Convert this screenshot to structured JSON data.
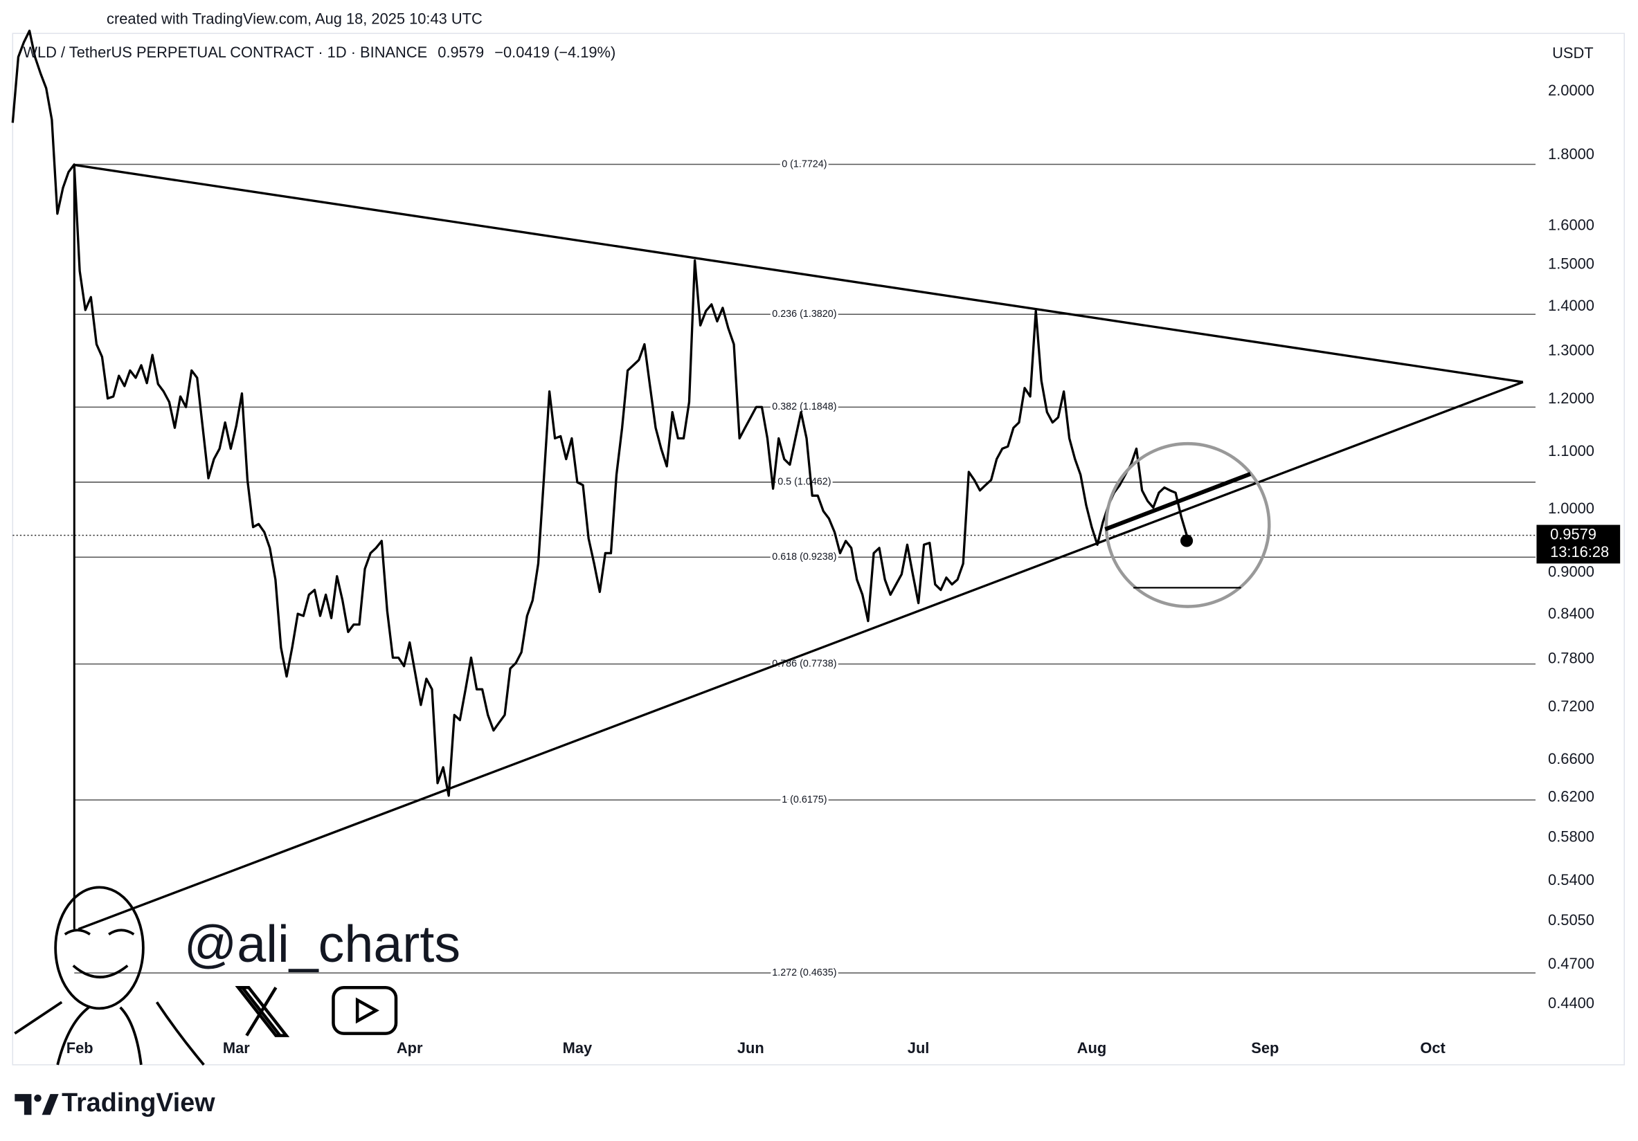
{
  "header": {
    "created": "created with TradingView.com, Aug 18, 2025 10:43 UTC"
  },
  "chart_data": {
    "type": "line",
    "title": "WLD / TetherUS PERPETUAL CONTRACT · 1D · BINANCE",
    "last_price": 0.9579,
    "change": "−0.0419 (−4.19%)",
    "currency": "USDT",
    "countdown": "13:16:28",
    "color": "#000000",
    "log_scale": true,
    "values": [
      1.899,
      2.118,
      2.17,
      2.212,
      2.118,
      2.06,
      2.011,
      1.909,
      1.633,
      1.705,
      1.75,
      1.772,
      1.485,
      1.392,
      1.422,
      1.315,
      1.288,
      1.202,
      1.206,
      1.248,
      1.227,
      1.259,
      1.244,
      1.27,
      1.233,
      1.292,
      1.231,
      1.216,
      1.195,
      1.145,
      1.206,
      1.185,
      1.259,
      1.244,
      1.145,
      1.053,
      1.087,
      1.106,
      1.155,
      1.106,
      1.149,
      1.212,
      1.05,
      0.971,
      0.976,
      0.963,
      0.938,
      0.89,
      0.795,
      0.758,
      0.795,
      0.841,
      0.838,
      0.868,
      0.875,
      0.838,
      0.868,
      0.835,
      0.895,
      0.86,
      0.816,
      0.826,
      0.826,
      0.906,
      0.93,
      0.938,
      0.949,
      0.845,
      0.782,
      0.782,
      0.771,
      0.802,
      0.762,
      0.723,
      0.755,
      0.742,
      0.635,
      0.652,
      0.622,
      0.711,
      0.705,
      0.742,
      0.782,
      0.742,
      0.742,
      0.711,
      0.693,
      0.702,
      0.711,
      0.768,
      0.775,
      0.789,
      0.838,
      0.86,
      0.914,
      1.05,
      1.216,
      1.125,
      1.129,
      1.087,
      1.125,
      1.046,
      1.041,
      0.953,
      0.914,
      0.872,
      0.93,
      0.93,
      1.059,
      1.145,
      1.259,
      1.27,
      1.281,
      1.315,
      1.227,
      1.145,
      1.106,
      1.074,
      1.175,
      1.125,
      1.125,
      1.195,
      1.511,
      1.357,
      1.39,
      1.405,
      1.366,
      1.397,
      1.35,
      1.315,
      1.125,
      1.145,
      1.165,
      1.185,
      1.185,
      1.125,
      1.035,
      1.125,
      1.087,
      1.077,
      1.125,
      1.175,
      1.125,
      1.023,
      1.023,
      0.997,
      0.985,
      0.963,
      0.93,
      0.949,
      0.938,
      0.89,
      0.868,
      0.831,
      0.93,
      0.938,
      0.89,
      0.868,
      0.883,
      0.898,
      0.943,
      0.898,
      0.856,
      0.943,
      0.946,
      0.883,
      0.875,
      0.893,
      0.883,
      0.89,
      0.914,
      1.064,
      1.05,
      1.032,
      1.041,
      1.05,
      1.087,
      1.106,
      1.11,
      1.145,
      1.155,
      1.223,
      1.206,
      1.39,
      1.238,
      1.175,
      1.155,
      1.165,
      1.216,
      1.125,
      1.087,
      1.059,
      1.007,
      0.971,
      0.943,
      0.979,
      1.007,
      1.028,
      1.041,
      1.059,
      1.077,
      1.106,
      1.032,
      1.014,
      1.003,
      1.028,
      1.037,
      1.032,
      1.028,
      0.988,
      0.9579
    ],
    "xlim": [
      0,
      272
    ],
    "xticks": [
      {
        "value": 12,
        "label": "Feb"
      },
      {
        "value": 40,
        "label": "Mar"
      },
      {
        "value": 71,
        "label": "Apr"
      },
      {
        "value": 101,
        "label": "May"
      },
      {
        "value": 132,
        "label": "Jun"
      },
      {
        "value": 162,
        "label": "Jul"
      },
      {
        "value": 193,
        "label": "Aug"
      },
      {
        "value": 224,
        "label": "Sep"
      },
      {
        "value": 254,
        "label": "Oct"
      }
    ],
    "ylim": [
      0.398,
      2.21
    ],
    "yticks": [
      {
        "value": 2.0,
        "label": "2.0000"
      },
      {
        "value": 1.8,
        "label": "1.8000"
      },
      {
        "value": 1.6,
        "label": "1.6000"
      },
      {
        "value": 1.5,
        "label": "1.5000"
      },
      {
        "value": 1.4,
        "label": "1.4000"
      },
      {
        "value": 1.3,
        "label": "1.3000"
      },
      {
        "value": 1.2,
        "label": "1.2000"
      },
      {
        "value": 1.1,
        "label": "1.1000"
      },
      {
        "value": 1.0,
        "label": "1.0000"
      },
      {
        "value": 0.9,
        "label": "0.9000"
      },
      {
        "value": 0.84,
        "label": "0.8400"
      },
      {
        "value": 0.78,
        "label": "0.7800"
      },
      {
        "value": 0.72,
        "label": "0.7200"
      },
      {
        "value": 0.66,
        "label": "0.6600"
      },
      {
        "value": 0.62,
        "label": "0.6200"
      },
      {
        "value": 0.58,
        "label": "0.5800"
      },
      {
        "value": 0.54,
        "label": "0.5400"
      },
      {
        "value": 0.505,
        "label": "0.5050"
      },
      {
        "value": 0.47,
        "label": "0.4700"
      },
      {
        "value": 0.44,
        "label": "0.4400"
      }
    ],
    "fib_levels": [
      {
        "value": 1.7724,
        "label": "0 (1.7724)"
      },
      {
        "value": 1.382,
        "label": "0.236 (1.3820)"
      },
      {
        "value": 1.1848,
        "label": "0.382 (1.1848)"
      },
      {
        "value": 1.0462,
        "label": "0.5 (1.0462)"
      },
      {
        "value": 0.9238,
        "label": "0.618 (0.9238)"
      },
      {
        "value": 0.7738,
        "label": "0.786 (0.7738)"
      },
      {
        "value": 0.6175,
        "label": "1 (0.6175)"
      },
      {
        "value": 0.4635,
        "label": "1.272 (0.4635)"
      }
    ]
  },
  "watermark": {
    "handle": "@ali_charts"
  },
  "footer": {
    "brand": "TradingView"
  }
}
